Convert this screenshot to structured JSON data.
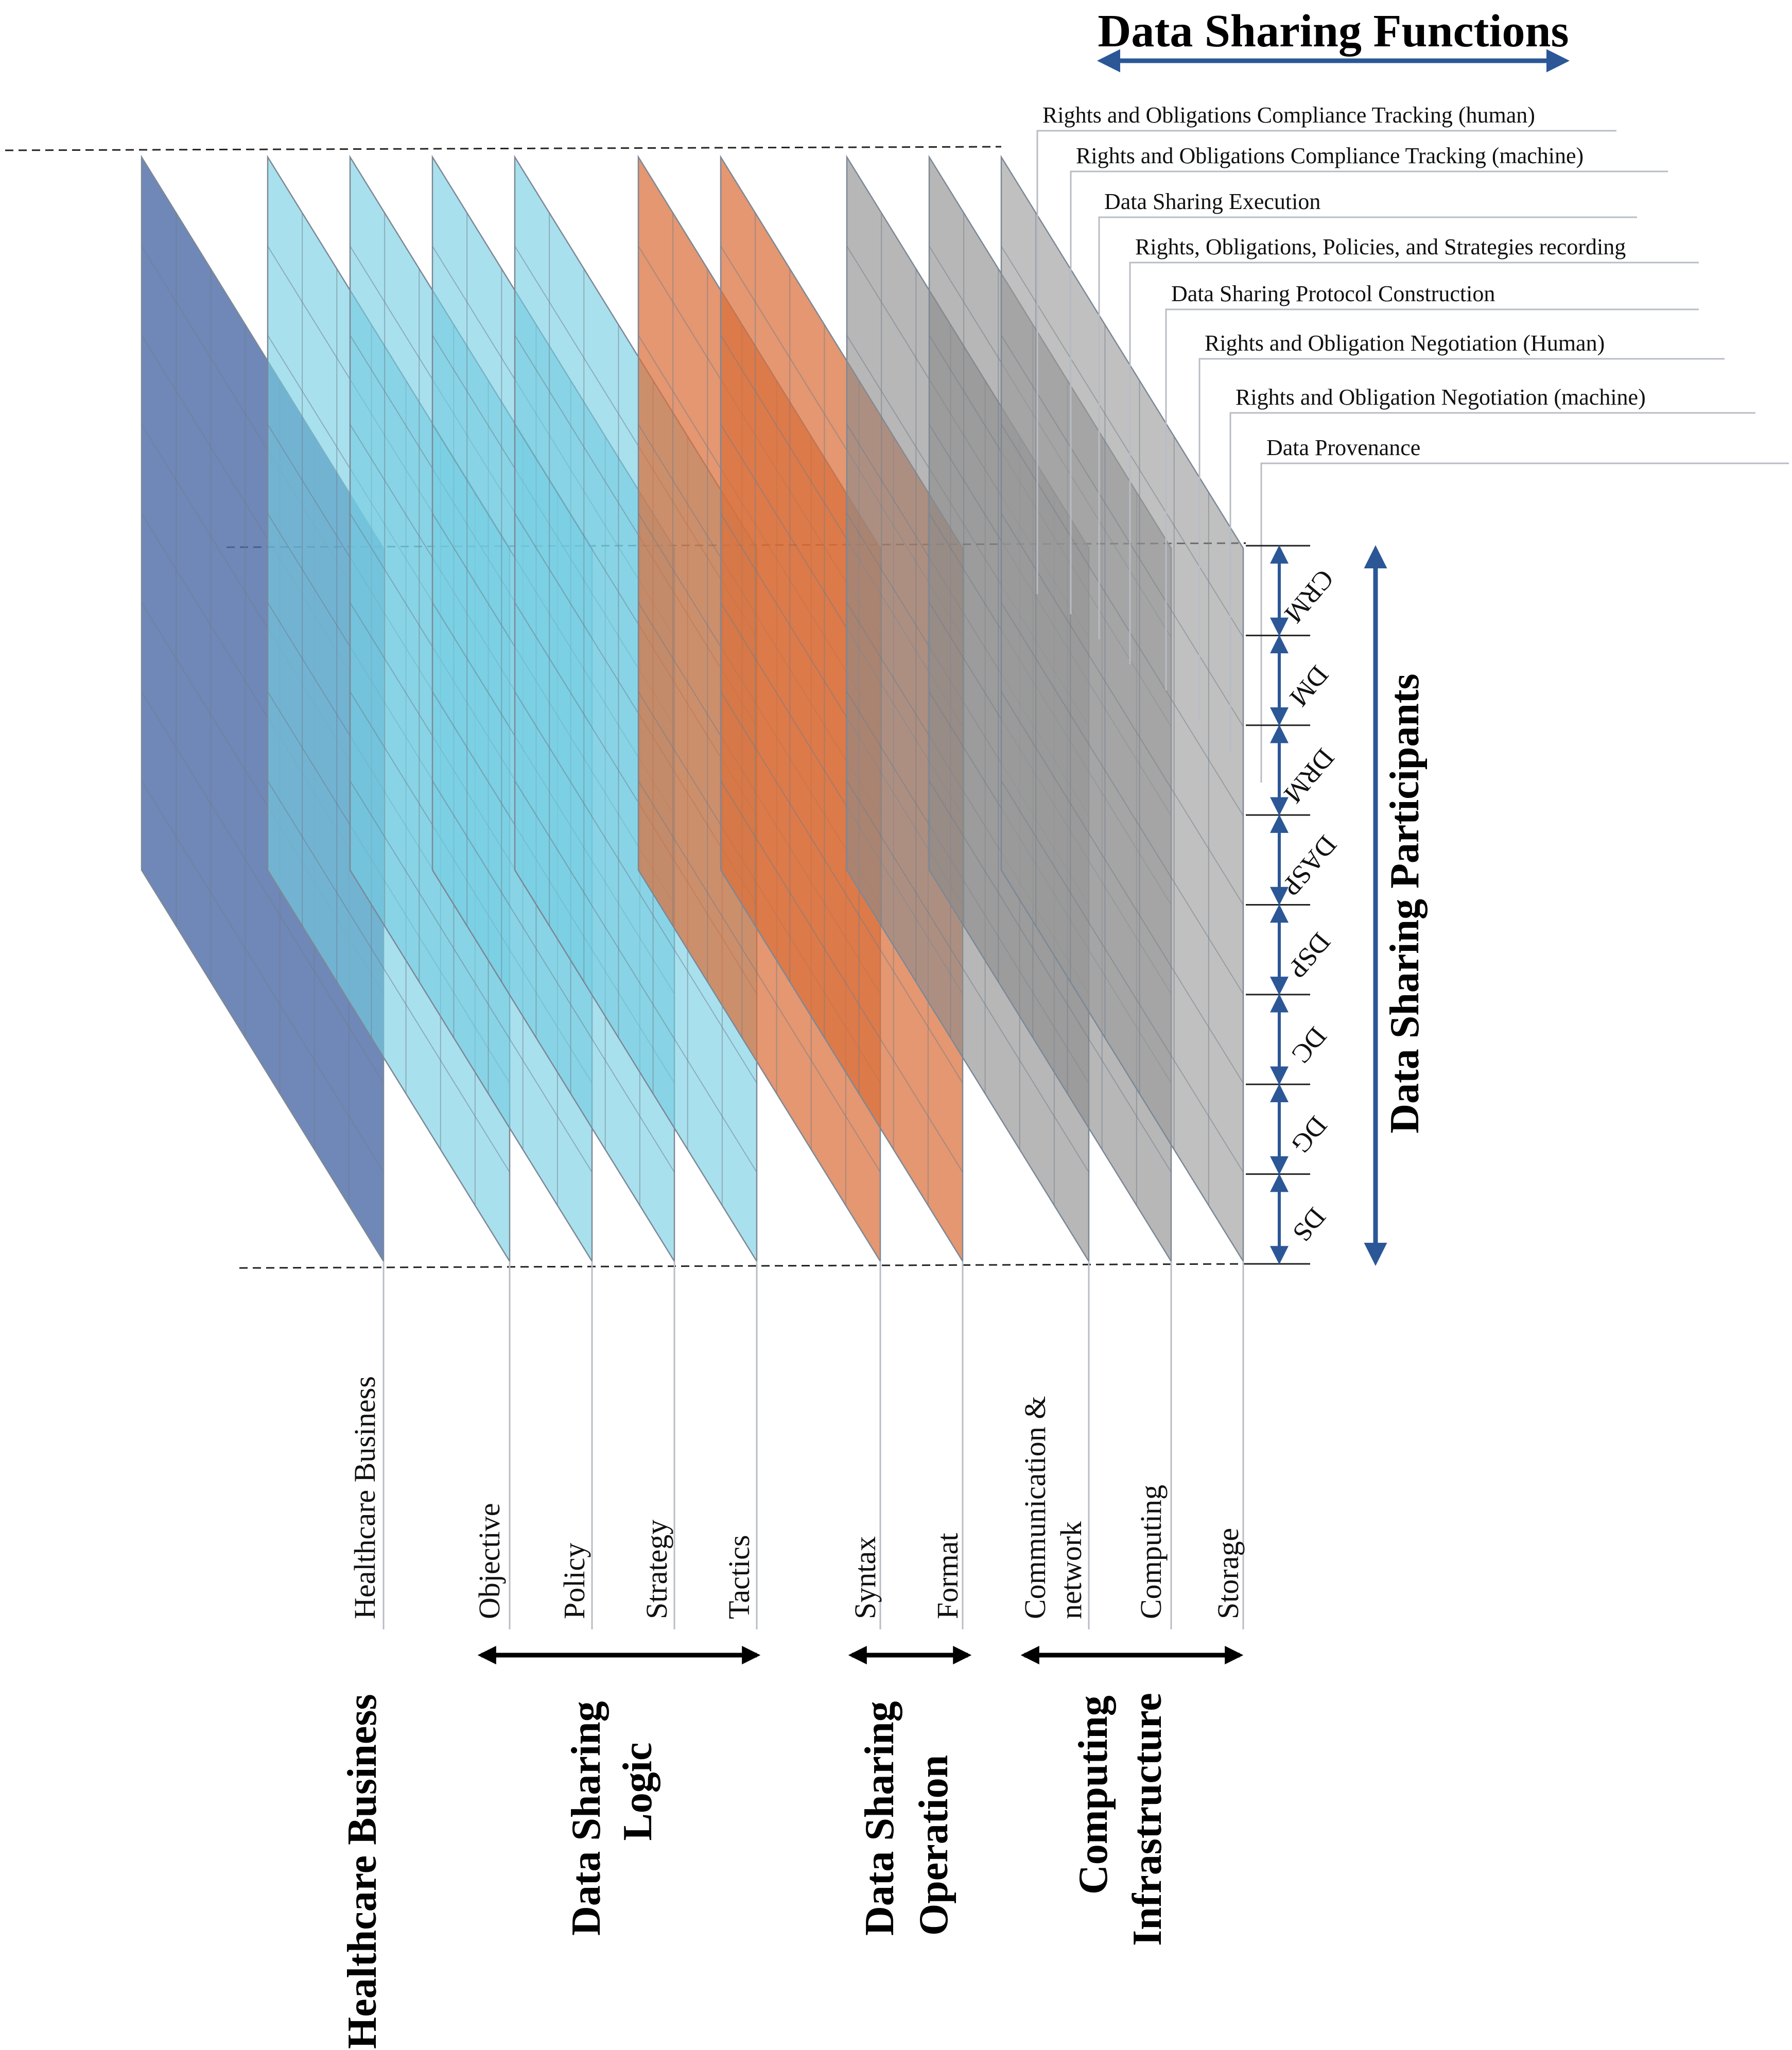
{
  "title": "Data Sharing Functions",
  "participants_axis_title": "Data Sharing Participants",
  "functions": [
    "Rights and Obligations Compliance Tracking (human)",
    "Rights and Obligations Compliance Tracking (machine)",
    "Data Sharing Execution",
    "Rights, Obligations, Policies, and Strategies recording",
    "Data Sharing Protocol Construction",
    "Rights and Obligation Negotiation (Human)",
    "Rights and Obligation Negotiation (machine)",
    "Data Provenance"
  ],
  "participants": [
    "CRM",
    "DM",
    "DRM",
    "DASP",
    "DSP",
    "DC",
    "DG",
    "DS"
  ],
  "layers": [
    {
      "label": "Healthcare Business",
      "group": "business",
      "color": "#4f6ea8"
    },
    {
      "label": "Objective",
      "group": "logic",
      "color": "#74cde2"
    },
    {
      "label": "Policy",
      "group": "logic",
      "color": "#74cde2"
    },
    {
      "label": "Strategy",
      "group": "logic",
      "color": "#74cde2"
    },
    {
      "label": "Tactics",
      "group": "logic",
      "color": "#74cde2"
    },
    {
      "label": "Syntax",
      "group": "operation",
      "color": "#d96f3a"
    },
    {
      "label": "Format",
      "group": "operation",
      "color": "#d96f3a"
    },
    {
      "label": "Communication &",
      "label2": "network",
      "group": "infrastructure",
      "color": "#8a8a8a"
    },
    {
      "label": "Computing",
      "group": "infrastructure",
      "color": "#8a8a8a"
    },
    {
      "label": "Storage",
      "group": "infrastructure",
      "color": "#9a9a9a"
    }
  ],
  "groups": {
    "business": {
      "lines": [
        "Healthcare Business"
      ]
    },
    "logic": {
      "lines": [
        "Data Sharing",
        "Logic"
      ]
    },
    "operation": {
      "lines": [
        "Data Sharing",
        "Operation"
      ]
    },
    "infrastructure": {
      "lines": [
        "Computing",
        "Infrastructure"
      ]
    }
  },
  "colors": {
    "arrow_blue": "#2b5797",
    "arrow_black": "#000000"
  }
}
